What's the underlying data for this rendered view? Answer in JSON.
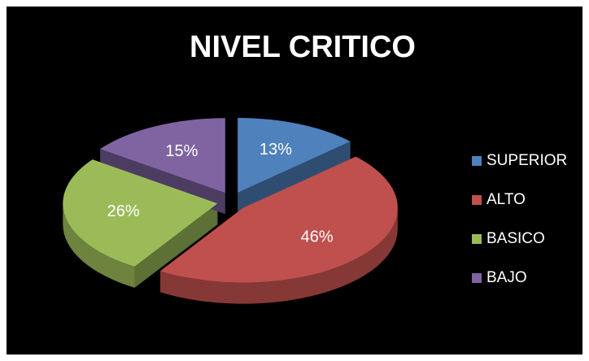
{
  "chart_data": {
    "type": "pie",
    "title": "NIVEL CRITICO",
    "categories": [
      "SUPERIOR",
      "ALTO",
      "BASICO",
      "BAJO"
    ],
    "values": [
      13,
      46,
      26,
      15
    ],
    "value_labels": [
      "13%",
      "46%",
      "26%",
      "15%"
    ],
    "colors": [
      "#4f81bd",
      "#c0504d",
      "#9bbb59",
      "#8064a2"
    ],
    "legend": "right"
  }
}
